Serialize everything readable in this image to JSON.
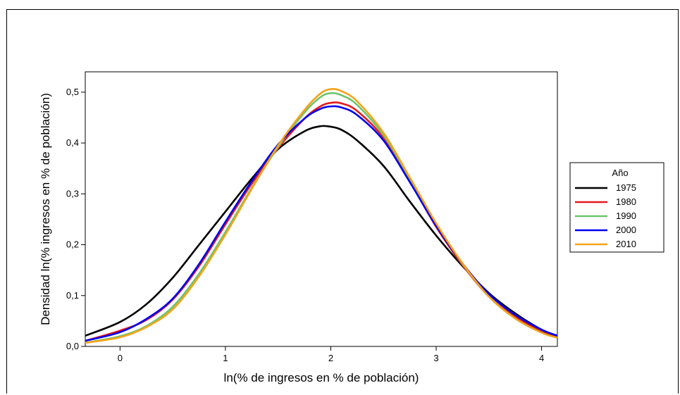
{
  "chart_data": {
    "type": "line",
    "xlabel": "ln(% de ingresos en % de población)",
    "ylabel": "Densidad ln(% ingresos en % de población)",
    "xlim": [
      -0.33,
      4.15
    ],
    "ylim": [
      0.0,
      0.54
    ],
    "xticks": [
      0,
      1,
      2,
      3,
      4
    ],
    "xtick_labels": [
      "0",
      "1",
      "2",
      "3",
      "4"
    ],
    "yticks": [
      0.0,
      0.1,
      0.2,
      0.3,
      0.4,
      0.5
    ],
    "ytick_labels": [
      "0,0",
      "0,1",
      "0,2",
      "0,3",
      "0,4",
      "0,5"
    ],
    "grid": false,
    "legend": {
      "title": "Año",
      "position": "right"
    },
    "series": [
      {
        "name": "1975",
        "color": "#000000",
        "x": [
          -0.33,
          0.0,
          0.25,
          0.5,
          0.75,
          1.0,
          1.25,
          1.5,
          1.75,
          1.9,
          2.0,
          2.1,
          2.25,
          2.5,
          2.75,
          3.0,
          3.25,
          3.5,
          3.75,
          4.0,
          4.15
        ],
        "y": [
          0.021,
          0.048,
          0.083,
          0.135,
          0.2,
          0.265,
          0.33,
          0.388,
          0.423,
          0.433,
          0.432,
          0.426,
          0.405,
          0.355,
          0.285,
          0.218,
          0.158,
          0.105,
          0.065,
          0.033,
          0.021
        ]
      },
      {
        "name": "1980",
        "color": "#e41a1c",
        "x": [
          -0.33,
          0.0,
          0.25,
          0.5,
          0.75,
          1.0,
          1.25,
          1.5,
          1.75,
          1.9,
          2.0,
          2.1,
          2.25,
          2.5,
          2.75,
          3.0,
          3.25,
          3.5,
          3.75,
          4.0,
          4.15
        ],
        "y": [
          0.011,
          0.031,
          0.052,
          0.092,
          0.158,
          0.24,
          0.32,
          0.39,
          0.448,
          0.472,
          0.479,
          0.478,
          0.463,
          0.41,
          0.325,
          0.235,
          0.16,
          0.098,
          0.058,
          0.03,
          0.02
        ]
      },
      {
        "name": "1990",
        "color": "#6cc46c",
        "x": [
          -0.33,
          0.0,
          0.25,
          0.5,
          0.75,
          1.0,
          1.25,
          1.5,
          1.75,
          1.9,
          2.0,
          2.1,
          2.25,
          2.5,
          2.75,
          3.0,
          3.25,
          3.5,
          3.75,
          4.0,
          4.15
        ],
        "y": [
          0.007,
          0.02,
          0.04,
          0.078,
          0.143,
          0.225,
          0.312,
          0.392,
          0.46,
          0.49,
          0.498,
          0.494,
          0.475,
          0.415,
          0.33,
          0.24,
          0.162,
          0.098,
          0.055,
          0.027,
          0.017
        ]
      },
      {
        "name": "2000",
        "color": "#0000ee",
        "x": [
          -0.33,
          0.0,
          0.25,
          0.5,
          0.75,
          1.0,
          1.25,
          1.5,
          1.75,
          1.9,
          2.0,
          2.1,
          2.25,
          2.5,
          2.75,
          3.0,
          3.25,
          3.5,
          3.75,
          4.0,
          4.15
        ],
        "y": [
          0.011,
          0.028,
          0.054,
          0.094,
          0.162,
          0.245,
          0.325,
          0.397,
          0.448,
          0.467,
          0.472,
          0.47,
          0.455,
          0.405,
          0.323,
          0.237,
          0.163,
          0.103,
          0.062,
          0.033,
          0.021
        ]
      },
      {
        "name": "2010",
        "color": "#f5a31a",
        "x": [
          -0.33,
          0.0,
          0.25,
          0.5,
          0.75,
          1.0,
          1.25,
          1.5,
          1.75,
          1.9,
          2.0,
          2.1,
          2.25,
          2.5,
          2.75,
          3.0,
          3.25,
          3.5,
          3.75,
          4.0,
          4.15
        ],
        "y": [
          0.007,
          0.018,
          0.038,
          0.073,
          0.138,
          0.22,
          0.31,
          0.395,
          0.465,
          0.497,
          0.506,
          0.502,
          0.482,
          0.42,
          0.332,
          0.242,
          0.163,
          0.098,
          0.055,
          0.027,
          0.017
        ]
      }
    ]
  }
}
